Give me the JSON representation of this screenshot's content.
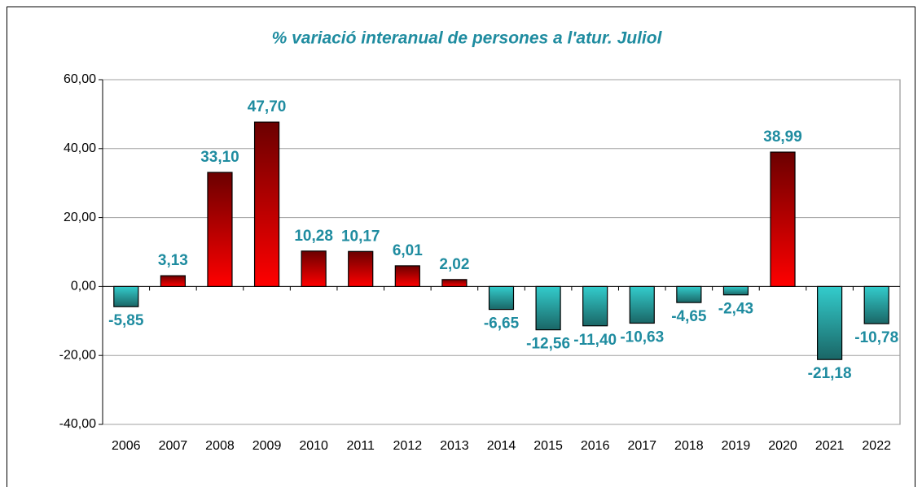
{
  "chart_data": {
    "type": "bar",
    "title": "% variació interanual de persones a l'atur. Juliol",
    "categories": [
      "2006",
      "2007",
      "2008",
      "2009",
      "2010",
      "2011",
      "2012",
      "2013",
      "2014",
      "2015",
      "2016",
      "2017",
      "2018",
      "2019",
      "2020",
      "2021",
      "2022"
    ],
    "values": [
      -5.85,
      3.13,
      33.1,
      47.7,
      10.28,
      10.17,
      6.01,
      2.02,
      -6.65,
      -12.56,
      -11.4,
      -10.63,
      -4.65,
      -2.43,
      38.99,
      -21.18,
      -10.78
    ],
    "value_labels": [
      "-5,85",
      "3,13",
      "33,10",
      "47,70",
      "10,28",
      "10,17",
      "6,01",
      "2,02",
      "-6,65",
      "-12,56",
      "-11,40",
      "-10,63",
      "-4,65",
      "-2,43",
      "38,99",
      "-21,18",
      "-10,78"
    ],
    "color": "#ff0000",
    "negative_color": "#33cccc",
    "ylim": [
      -40,
      60
    ],
    "yticks": [
      {
        "value": -40,
        "label": "-40,00"
      },
      {
        "value": -20,
        "label": "-20,00"
      },
      {
        "value": 0,
        "label": "0,00"
      },
      {
        "value": 20,
        "label": "20,00"
      },
      {
        "value": 40,
        "label": "40,00"
      },
      {
        "value": 60,
        "label": "60,00"
      }
    ],
    "grid": true
  }
}
